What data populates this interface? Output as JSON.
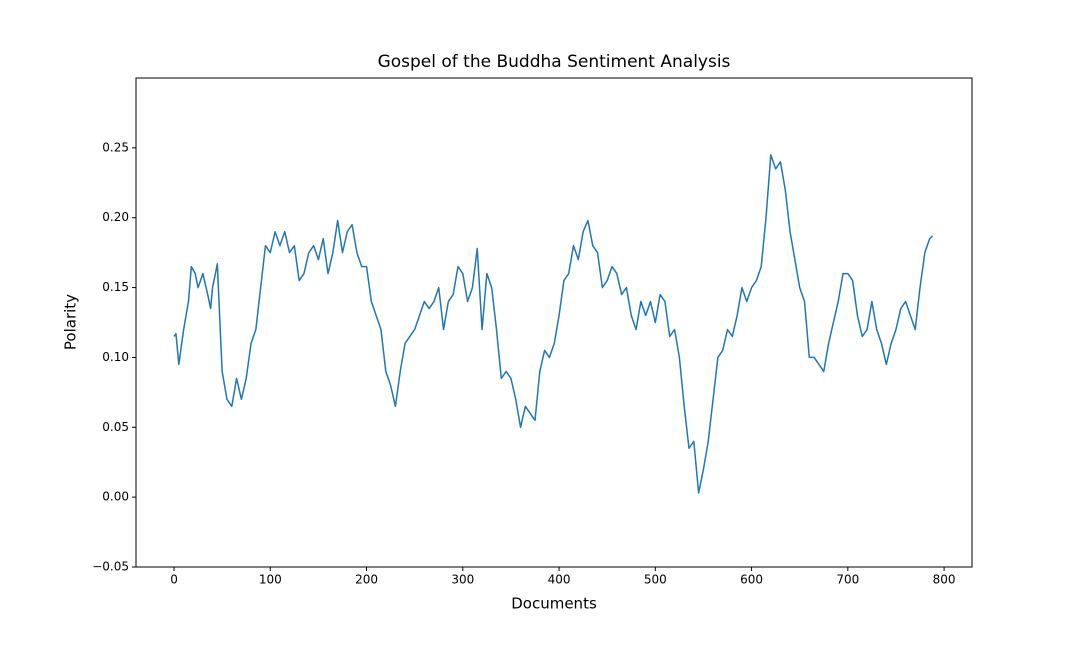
{
  "chart_data": {
    "type": "line",
    "title": "Gospel of the Buddha Sentiment Analysis",
    "x_label": "Documents",
    "y_label": "Polarity",
    "x": [
      0,
      2,
      5,
      10,
      15,
      18,
      22,
      25,
      30,
      35,
      38,
      40,
      43,
      45,
      48,
      50,
      55,
      60,
      65,
      70,
      75,
      80,
      85,
      90,
      95,
      100,
      105,
      110,
      115,
      120,
      125,
      130,
      135,
      140,
      145,
      150,
      155,
      160,
      165,
      170,
      175,
      180,
      185,
      190,
      195,
      200,
      205,
      210,
      215,
      220,
      225,
      230,
      235,
      240,
      245,
      250,
      255,
      260,
      265,
      270,
      275,
      280,
      285,
      290,
      295,
      300,
      305,
      310,
      315,
      320,
      325,
      330,
      335,
      340,
      345,
      350,
      355,
      360,
      365,
      370,
      375,
      380,
      385,
      390,
      395,
      400,
      405,
      410,
      415,
      420,
      425,
      430,
      435,
      440,
      445,
      450,
      455,
      460,
      465,
      470,
      475,
      480,
      485,
      490,
      495,
      500,
      505,
      510,
      515,
      520,
      525,
      530,
      535,
      540,
      545,
      550,
      555,
      560,
      565,
      570,
      575,
      580,
      585,
      590,
      595,
      600,
      605,
      610,
      615,
      620,
      625,
      630,
      635,
      640,
      645,
      650,
      655,
      660,
      665,
      670,
      675,
      680,
      685,
      690,
      695,
      700,
      705,
      710,
      715,
      720,
      725,
      730,
      735,
      740,
      745,
      750,
      755,
      760,
      765,
      770,
      775,
      780,
      785,
      788
    ],
    "series": [
      {
        "name": "Polarity",
        "color": "#1f77b4",
        "values": [
          0.115,
          0.117,
          0.095,
          0.12,
          0.14,
          0.165,
          0.16,
          0.15,
          0.16,
          0.145,
          0.135,
          0.15,
          0.16,
          0.167,
          0.12,
          0.09,
          0.07,
          0.065,
          0.085,
          0.07,
          0.085,
          0.11,
          0.12,
          0.15,
          0.18,
          0.175,
          0.19,
          0.18,
          0.19,
          0.175,
          0.18,
          0.155,
          0.16,
          0.175,
          0.18,
          0.17,
          0.185,
          0.16,
          0.175,
          0.198,
          0.175,
          0.19,
          0.195,
          0.175,
          0.165,
          0.165,
          0.14,
          0.13,
          0.12,
          0.09,
          0.08,
          0.065,
          0.09,
          0.11,
          0.115,
          0.12,
          0.13,
          0.14,
          0.135,
          0.14,
          0.15,
          0.12,
          0.14,
          0.145,
          0.165,
          0.16,
          0.14,
          0.15,
          0.178,
          0.12,
          0.16,
          0.15,
          0.12,
          0.085,
          0.09,
          0.085,
          0.07,
          0.05,
          0.065,
          0.06,
          0.055,
          0.09,
          0.105,
          0.1,
          0.11,
          0.13,
          0.155,
          0.16,
          0.18,
          0.17,
          0.19,
          0.198,
          0.18,
          0.175,
          0.15,
          0.155,
          0.165,
          0.16,
          0.145,
          0.15,
          0.13,
          0.12,
          0.14,
          0.13,
          0.14,
          0.125,
          0.145,
          0.14,
          0.115,
          0.12,
          0.1,
          0.065,
          0.035,
          0.04,
          0.003,
          0.02,
          0.04,
          0.07,
          0.1,
          0.105,
          0.12,
          0.115,
          0.13,
          0.15,
          0.14,
          0.15,
          0.155,
          0.165,
          0.2,
          0.245,
          0.235,
          0.24,
          0.22,
          0.19,
          0.17,
          0.15,
          0.14,
          0.1,
          0.1,
          0.095,
          0.09,
          0.11,
          0.125,
          0.14,
          0.16,
          0.16,
          0.155,
          0.13,
          0.115,
          0.12,
          0.14,
          0.12,
          0.11,
          0.095,
          0.11,
          0.12,
          0.135,
          0.14,
          0.13,
          0.12,
          0.15,
          0.175,
          0.185,
          0.187
        ]
      }
    ],
    "xlim": [
      -39.5,
      829
    ],
    "ylim": [
      -0.05,
      0.3
    ],
    "xticks": [
      0,
      100,
      200,
      300,
      400,
      500,
      600,
      700,
      800
    ],
    "yticks": [
      {
        "value": -0.05,
        "label": "−0.05"
      },
      {
        "value": 0,
        "label": "0.00"
      },
      {
        "value": 0.05,
        "label": "0.05"
      },
      {
        "value": 0.1,
        "label": "0.10"
      },
      {
        "value": 0.15,
        "label": "0.15"
      },
      {
        "value": 0.2,
        "label": "0.20"
      },
      {
        "value": 0.25,
        "label": "0.25"
      }
    ]
  }
}
